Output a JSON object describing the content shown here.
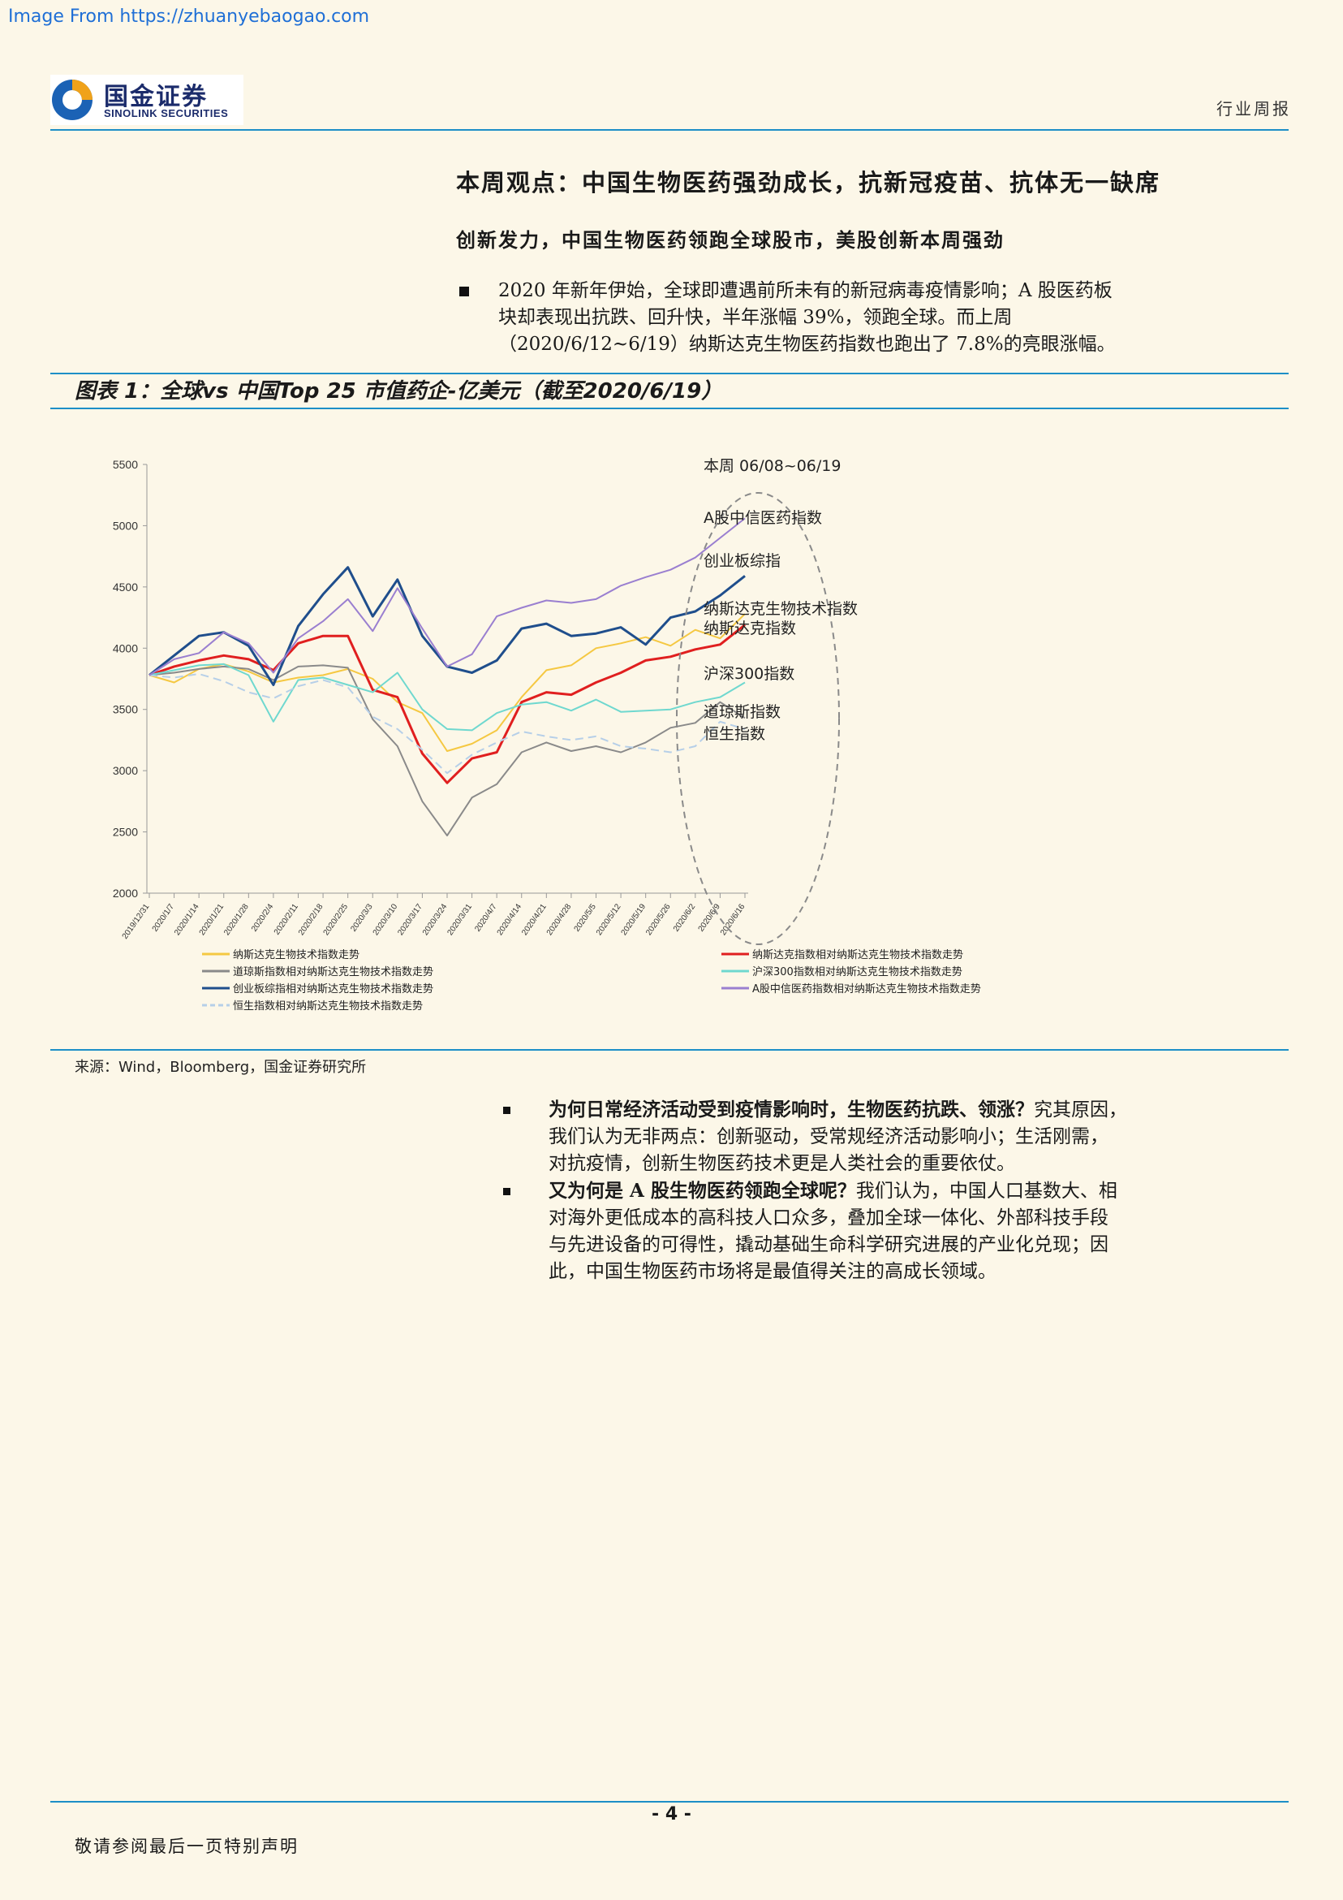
{
  "source_note": "Image From https://zhuanyebaogao.com",
  "header": {
    "logo_cn": "国金证券",
    "logo_en": "SINOLINK SECURITIES",
    "report_type": "行业周报"
  },
  "title": "本周观点：中国生物医药强劲成长，抗新冠疫苗、抗体无一缺席",
  "subtitle": "创新发力，中国生物医药领跑全球股市，美股创新本周强劲",
  "bullet1": {
    "line1": "2020 年新年伊始，全球即遭遇前所未有的新冠病毒疫情影响；A 股医药板",
    "line2": "块却表现出抗跌、回升快，半年涨幅 39%，领跑全球。而上周",
    "line3": "（2020/6/12~6/19）纳斯达克生物医药指数也跑出了 7.8%的亮眼涨幅。"
  },
  "figure_title": "图表 1：全球vs 中国Top 25 市值药企-亿美元（截至2020/6/19）",
  "chart_data": {
    "type": "line",
    "ylim": [
      2000,
      5500
    ],
    "yticks": [
      "5500",
      "5000",
      "4500",
      "4000",
      "3500",
      "3000",
      "2500",
      "2000"
    ],
    "x_ticks": [
      "2019/12/31",
      "2020/1/7",
      "2020/1/14",
      "2020/1/21",
      "2020/1/28",
      "2020/2/4",
      "2020/2/11",
      "2020/2/18",
      "2020/2/25",
      "2020/3/3",
      "2020/3/10",
      "2020/3/17",
      "2020/3/24",
      "2020/3/31",
      "2020/4/7",
      "2020/4/14",
      "2020/4/21",
      "2020/4/28",
      "2020/5/5",
      "2020/5/12",
      "2020/5/19",
      "2020/5/26",
      "2020/6/2",
      "2020/6/9",
      "2020/6/16"
    ],
    "annotations": {
      "week": "本周 06/08~06/19",
      "labels": [
        "A股中信医药指数",
        "创业板综指",
        "纳斯达克生物技术指数",
        "纳斯达克指数",
        "沪深300指数",
        "道琼斯指数",
        "恒生指数"
      ]
    },
    "series": [
      {
        "name": "纳斯达克生物技术指数走势",
        "color": "#f5c842",
        "dash": false,
        "values": [
          3780,
          3720,
          3830,
          3870,
          3810,
          3720,
          3760,
          3780,
          3830,
          3750,
          3560,
          3470,
          3160,
          3220,
          3330,
          3600,
          3820,
          3860,
          4000,
          4040,
          4090,
          4020,
          4150,
          4080,
          4280
        ]
      },
      {
        "name": "纳斯达克指数相对纳斯达克生物技术指数走势",
        "color": "#e01f1f",
        "dash": false,
        "values": [
          3780,
          3850,
          3900,
          3940,
          3910,
          3820,
          4040,
          4100,
          4100,
          3660,
          3600,
          3140,
          2900,
          3100,
          3150,
          3560,
          3640,
          3620,
          3720,
          3800,
          3900,
          3930,
          3990,
          4030,
          4190
        ]
      },
      {
        "name": "道琼斯指数相对纳斯达克生物技术指数走势",
        "color": "#8a8a8a",
        "dash": false,
        "values": [
          3780,
          3800,
          3830,
          3850,
          3830,
          3740,
          3850,
          3860,
          3840,
          3420,
          3200,
          2750,
          2470,
          2780,
          2890,
          3150,
          3230,
          3160,
          3200,
          3150,
          3230,
          3350,
          3390,
          3560,
          3430
        ]
      },
      {
        "name": "沪深300指数相对纳斯达克生物技术指数走势",
        "color": "#6fd8cf",
        "dash": false,
        "values": [
          3780,
          3820,
          3860,
          3870,
          3780,
          3400,
          3740,
          3760,
          3700,
          3640,
          3800,
          3500,
          3340,
          3330,
          3470,
          3540,
          3560,
          3490,
          3580,
          3480,
          3490,
          3500,
          3560,
          3600,
          3720
        ]
      },
      {
        "name": "创业板综指相对纳斯达克生物技术指数走势",
        "color": "#1f4e8c",
        "dash": false,
        "values": [
          3780,
          3940,
          4100,
          4130,
          4020,
          3700,
          4180,
          4440,
          4660,
          4260,
          4560,
          4100,
          3850,
          3800,
          3900,
          4160,
          4200,
          4100,
          4120,
          4170,
          4030,
          4250,
          4300,
          4430,
          4590
        ]
      },
      {
        "name": "恒生指数相对纳斯达克生物技术指数走势",
        "color": "#b6cfe8",
        "dash": true,
        "values": [
          3780,
          3760,
          3790,
          3730,
          3640,
          3590,
          3690,
          3740,
          3680,
          3440,
          3340,
          3170,
          2980,
          3130,
          3230,
          3320,
          3280,
          3250,
          3280,
          3200,
          3180,
          3150,
          3200,
          3400,
          3340
        ]
      },
      {
        "name": "A股中信医药指数相对纳斯达克生物技术指数走势",
        "color": "#9a7fd0",
        "dash": false,
        "values": [
          3780,
          3910,
          3960,
          4130,
          4040,
          3800,
          4080,
          4220,
          4400,
          4140,
          4490,
          4160,
          3850,
          3950,
          4260,
          4330,
          4390,
          4370,
          4400,
          4510,
          4580,
          4640,
          4740,
          4900,
          5060
        ]
      }
    ]
  },
  "source": "来源：Wind，Bloomberg，国金证券研究所",
  "bullet2": {
    "highlight": "为何日常经济活动受到疫情影响时，生物医药抗跌、领涨？",
    "line1_rest": "究其原因，",
    "line2": "我们认为无非两点：创新驱动，受常规经济活动影响小；生活刚需，",
    "line3": "对抗疫情，创新生物医药技术更是人类社会的重要依仗。"
  },
  "bullet3": {
    "highlight": "又为何是 A 股生物医药领跑全球呢？",
    "line1_rest": "我们认为，中国人口基数大、相",
    "line2": "对海外更低成本的高科技人口众多，叠加全球一体化、外部科技手段",
    "line3": "与先进设备的可得性，撬动基础生命科学研究进展的产业化兑现；因",
    "line4": "此，中国生物医药市场将是最值得关注的高成长领域。"
  },
  "page_number": "- 4 -",
  "footer": "敬请参阅最后一页特别声明"
}
